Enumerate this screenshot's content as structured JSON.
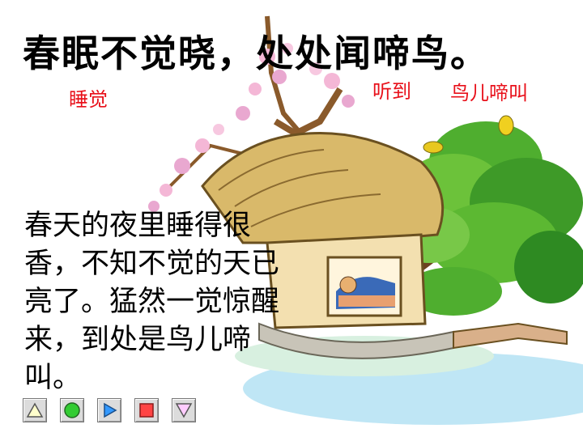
{
  "poem": {
    "line": "春眠不觉晓，处处闻啼鸟。"
  },
  "notes": {
    "sleep": "睡觉",
    "hear": "听到",
    "bird_call": "鸟儿啼叫"
  },
  "explanation": {
    "text": "春天的夜里睡得很香，不知不觉的天已亮了。猛然一觉惊醒来，到处是鸟儿啼叫。"
  },
  "nav_buttons": [
    {
      "icon": "triangle-up-icon",
      "color": "#ffffcc"
    },
    {
      "icon": "circle-icon",
      "color": "#33cc33"
    },
    {
      "icon": "play-icon",
      "color": "#3399ff"
    },
    {
      "icon": "stop-square-icon",
      "color": "#ff4444"
    },
    {
      "icon": "triangle-down-icon",
      "color": "#ffccff"
    }
  ]
}
